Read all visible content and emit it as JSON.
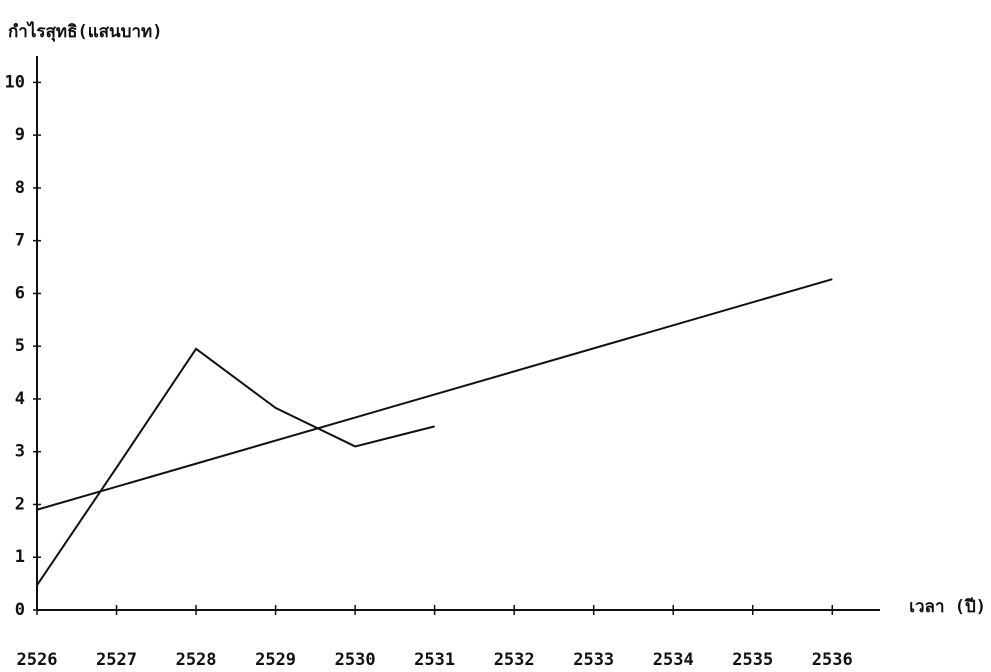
{
  "chart_data": {
    "type": "line",
    "y_label": "กำไรสุทธิ(แสนบาท)",
    "x_label": "เวลา (ปี)",
    "xlim": [
      2526,
      2536.6
    ],
    "xticks": [
      2526,
      2527,
      2528,
      2529,
      2530,
      2531,
      2532,
      2533,
      2534,
      2535,
      2536
    ],
    "ylim": [
      0,
      10.5
    ],
    "yticks": [
      0,
      1,
      2,
      3,
      4,
      5,
      6,
      7,
      8,
      9,
      10
    ],
    "series": [
      {
        "color": "#111111",
        "x": [
          2526,
          2527,
          2528,
          2529,
          2530,
          2531
        ],
        "values": [
          0.47,
          2.7,
          4.95,
          3.83,
          3.1,
          3.48
        ]
      },
      {
        "color": "#111111",
        "x": [
          2526,
          2536
        ],
        "values": [
          1.9,
          6.27
        ]
      }
    ]
  }
}
